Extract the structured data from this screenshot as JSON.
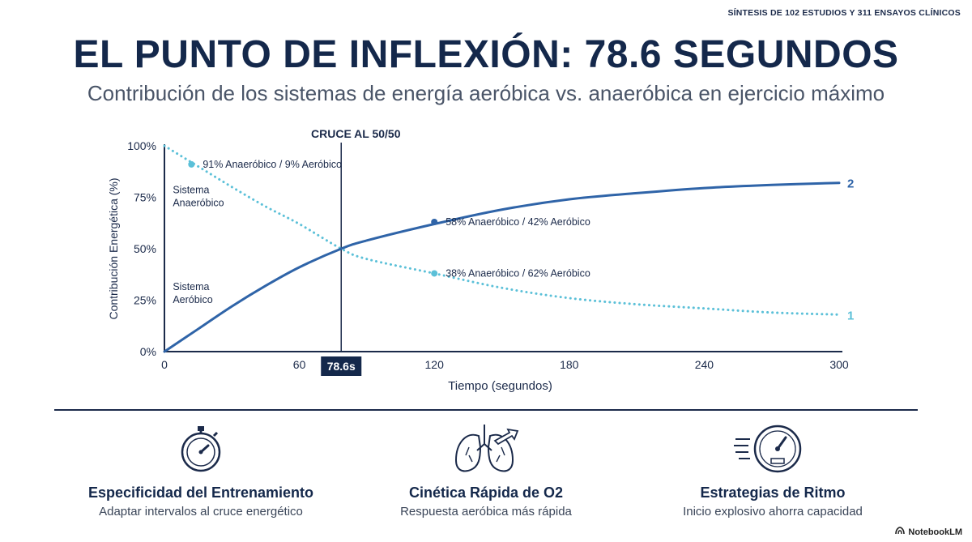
{
  "header": {
    "top_note": "SÍNTESIS DE 102 ESTUDIOS Y 311 ENSAYOS CLÍNICOS",
    "title": "EL PUNTO DE INFLEXIÓN: 78.6 SEGUNDOS",
    "subtitle": "Contribución de los sistemas de energía aeróbica vs. anaeróbica en ejercicio máximo"
  },
  "chart_data": {
    "type": "line",
    "xlabel": "Tiempo (segundos)",
    "ylabel": "Contribución Energética (%)",
    "xlim": [
      0,
      300
    ],
    "ylim": [
      0,
      100
    ],
    "x_ticks": [
      "0",
      "60",
      "120",
      "180",
      "240",
      "300"
    ],
    "x_tick_values": [
      0,
      60,
      120,
      180,
      240,
      300
    ],
    "y_ticks": [
      "0%",
      "25%",
      "50%",
      "75%",
      "100%"
    ],
    "y_tick_values": [
      0,
      25,
      50,
      75,
      100
    ],
    "grid": false,
    "series": [
      {
        "name": "1",
        "style": "dotted",
        "color": "#5bc0d8",
        "x": [
          0,
          15,
          30,
          45,
          60,
          78.6,
          90,
          120,
          150,
          180,
          210,
          240,
          270,
          300
        ],
        "values": [
          100,
          90,
          80,
          70.5,
          62,
          50,
          45,
          38,
          31,
          26,
          23,
          21,
          19,
          18
        ]
      },
      {
        "name": "2",
        "style": "solid",
        "color": "#2f64a8",
        "x": [
          0,
          15,
          30,
          45,
          60,
          78.6,
          90,
          120,
          150,
          180,
          210,
          240,
          270,
          300
        ],
        "values": [
          0,
          11,
          22,
          32,
          41,
          50,
          54,
          62,
          69,
          74,
          77,
          79.5,
          81,
          82
        ]
      }
    ],
    "region_labels": [
      {
        "text_lines": [
          "Sistema",
          "Anaeróbico"
        ],
        "x": 3,
        "y": 77
      },
      {
        "text_lines": [
          "Sistema",
          "Aeróbico"
        ],
        "x": 3,
        "y": 30
      }
    ],
    "crossover": {
      "x": 78.6,
      "label": "CRUCE AL 50/50",
      "tick_label": "78.6s"
    },
    "annotations": [
      {
        "text": "91% Anaeróbico / 9% Aeróbico",
        "x": 12,
        "y": 91,
        "series": "1"
      },
      {
        "text": "58% Anaeróbico / 42% Aeróbico",
        "x": 120,
        "y": 63,
        "series": "2"
      },
      {
        "text": "38% Anaeróbico / 62% Aeróbico",
        "x": 120,
        "y": 38,
        "series": "1"
      }
    ]
  },
  "cards": [
    {
      "icon": "stopwatch-icon",
      "title": "Especificidad del Entrenamiento",
      "desc": "Adaptar intervalos al cruce energético"
    },
    {
      "icon": "lungs-icon",
      "title": "Cinética Rápida de O2",
      "desc": "Respuesta aeróbica más rápida"
    },
    {
      "icon": "speedometer-icon",
      "title": "Estrategias de Ritmo",
      "desc": "Inicio explosivo ahorra capacidad"
    }
  ],
  "brand": {
    "name": "NotebookLM"
  }
}
